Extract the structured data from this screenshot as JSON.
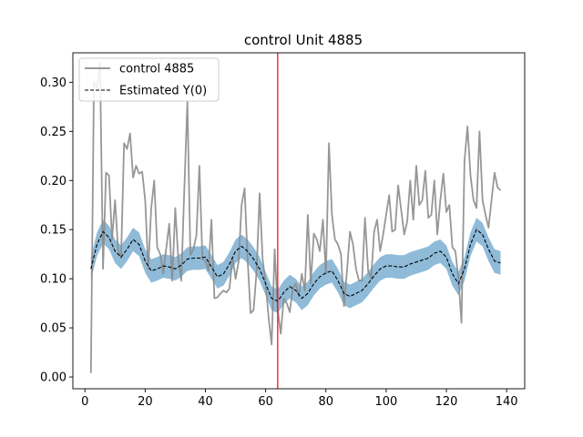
{
  "chart_data": {
    "type": "line",
    "title": "control Unit 4885",
    "xlabel": "",
    "ylabel": "",
    "xlim": [
      -4,
      146
    ],
    "ylim": [
      -0.012,
      0.33
    ],
    "xticks": [
      0,
      20,
      40,
      60,
      80,
      100,
      120,
      140
    ],
    "yticks": [
      0.0,
      0.05,
      0.1,
      0.15,
      0.2,
      0.25,
      0.3
    ],
    "ytick_labels": [
      "0.00",
      "0.05",
      "0.10",
      "0.15",
      "0.20",
      "0.25",
      "0.30"
    ],
    "grid": false,
    "legend": {
      "position": "top-left",
      "entries": [
        "control 4885",
        "Estimated Y(0)"
      ]
    },
    "colors": {
      "observed": "#8c8c8c",
      "estimate": "#000000",
      "band": "#1f77b4",
      "vline": "#ff0000"
    },
    "vline_x": 64,
    "series": [
      {
        "name": "control 4885",
        "style": "solid",
        "x": [
          2,
          3,
          4,
          5,
          6,
          7,
          8,
          9,
          10,
          11,
          12,
          13,
          14,
          15,
          16,
          17,
          18,
          19,
          20,
          21,
          22,
          23,
          24,
          25,
          26,
          27,
          28,
          29,
          30,
          31,
          32,
          33,
          34,
          35,
          36,
          37,
          38,
          39,
          40,
          41,
          42,
          43,
          44,
          45,
          46,
          47,
          48,
          49,
          50,
          51,
          52,
          53,
          54,
          55,
          56,
          57,
          58,
          59,
          60,
          61,
          62,
          63,
          64,
          65,
          66,
          67,
          68,
          69,
          70,
          71,
          72,
          73,
          74,
          75,
          76,
          77,
          78,
          79,
          80,
          81,
          82,
          83,
          84,
          85,
          86,
          87,
          88,
          89,
          90,
          91,
          92,
          93,
          94,
          95,
          96,
          97,
          98,
          99,
          100,
          101,
          102,
          103,
          104,
          105,
          106,
          107,
          108,
          109,
          110,
          111,
          112,
          113,
          114,
          115,
          116,
          117,
          118,
          119,
          120,
          121,
          122,
          123,
          124,
          125,
          126,
          127,
          128,
          129,
          130,
          131,
          132,
          133,
          134,
          135,
          136,
          137,
          138
        ],
        "values": [
          0.004,
          0.3,
          0.295,
          0.32,
          0.11,
          0.208,
          0.205,
          0.14,
          0.18,
          0.13,
          0.121,
          0.238,
          0.232,
          0.248,
          0.203,
          0.215,
          0.207,
          0.209,
          0.18,
          0.11,
          0.172,
          0.2,
          0.132,
          0.125,
          0.105,
          0.131,
          0.156,
          0.098,
          0.172,
          0.12,
          0.098,
          0.19,
          0.28,
          0.124,
          0.13,
          0.144,
          0.215,
          0.12,
          0.118,
          0.108,
          0.16,
          0.08,
          0.081,
          0.085,
          0.088,
          0.086,
          0.09,
          0.122,
          0.1,
          0.117,
          0.175,
          0.192,
          0.12,
          0.065,
          0.068,
          0.108,
          0.187,
          0.12,
          0.095,
          0.06,
          0.033,
          0.13,
          0.068,
          0.044,
          0.08,
          0.075,
          0.066,
          0.09,
          0.095,
          0.082,
          0.105,
          0.088,
          0.165,
          0.095,
          0.146,
          0.14,
          0.128,
          0.16,
          0.105,
          0.238,
          0.165,
          0.14,
          0.135,
          0.125,
          0.072,
          0.108,
          0.148,
          0.135,
          0.11,
          0.098,
          0.098,
          0.162,
          0.108,
          0.1,
          0.148,
          0.16,
          0.128,
          0.145,
          0.165,
          0.185,
          0.148,
          0.15,
          0.195,
          0.17,
          0.145,
          0.158,
          0.2,
          0.16,
          0.215,
          0.175,
          0.18,
          0.21,
          0.162,
          0.165,
          0.2,
          0.145,
          0.18,
          0.207,
          0.168,
          0.175,
          0.132,
          0.128,
          0.1,
          0.055,
          0.22,
          0.255,
          0.205,
          0.18,
          0.172,
          0.25,
          0.18,
          0.165,
          0.152,
          0.18,
          0.208,
          0.193,
          0.19
        ]
      },
      {
        "name": "Estimated Y(0)",
        "style": "dashed",
        "x": [
          2,
          4,
          6,
          8,
          10,
          12,
          14,
          16,
          18,
          20,
          22,
          24,
          26,
          28,
          30,
          32,
          34,
          36,
          38,
          40,
          42,
          44,
          46,
          48,
          50,
          52,
          54,
          56,
          58,
          60,
          62,
          64,
          66,
          68,
          70,
          72,
          74,
          76,
          78,
          80,
          82,
          84,
          86,
          88,
          90,
          92,
          94,
          96,
          98,
          100,
          102,
          104,
          106,
          108,
          110,
          112,
          114,
          116,
          118,
          120,
          122,
          124,
          126,
          128,
          130,
          132,
          134,
          136,
          138
        ],
        "values": [
          0.11,
          0.135,
          0.148,
          0.142,
          0.128,
          0.122,
          0.13,
          0.14,
          0.135,
          0.118,
          0.108,
          0.11,
          0.113,
          0.112,
          0.11,
          0.114,
          0.12,
          0.121,
          0.121,
          0.122,
          0.112,
          0.102,
          0.105,
          0.115,
          0.128,
          0.133,
          0.128,
          0.12,
          0.11,
          0.095,
          0.08,
          0.077,
          0.086,
          0.092,
          0.088,
          0.08,
          0.085,
          0.095,
          0.102,
          0.106,
          0.108,
          0.098,
          0.085,
          0.082,
          0.085,
          0.088,
          0.095,
          0.103,
          0.11,
          0.113,
          0.113,
          0.112,
          0.112,
          0.115,
          0.117,
          0.119,
          0.121,
          0.126,
          0.128,
          0.122,
          0.105,
          0.095,
          0.11,
          0.135,
          0.15,
          0.145,
          0.13,
          0.118,
          0.116
        ]
      }
    ],
    "band": {
      "x": [
        2,
        4,
        6,
        8,
        10,
        12,
        14,
        16,
        18,
        20,
        22,
        24,
        26,
        28,
        30,
        32,
        34,
        36,
        38,
        40,
        42,
        44,
        46,
        48,
        50,
        52,
        54,
        56,
        58,
        60,
        62,
        64,
        66,
        68,
        70,
        72,
        74,
        76,
        78,
        80,
        82,
        84,
        86,
        88,
        90,
        92,
        94,
        96,
        98,
        100,
        102,
        104,
        106,
        108,
        110,
        112,
        114,
        116,
        118,
        120,
        122,
        124,
        126,
        128,
        130,
        132,
        134,
        136,
        138
      ],
      "center": [
        0.11,
        0.135,
        0.148,
        0.142,
        0.128,
        0.122,
        0.13,
        0.14,
        0.135,
        0.118,
        0.108,
        0.11,
        0.113,
        0.112,
        0.11,
        0.114,
        0.12,
        0.121,
        0.121,
        0.122,
        0.112,
        0.102,
        0.105,
        0.115,
        0.128,
        0.133,
        0.128,
        0.12,
        0.11,
        0.095,
        0.08,
        0.077,
        0.086,
        0.092,
        0.088,
        0.08,
        0.085,
        0.095,
        0.102,
        0.106,
        0.108,
        0.098,
        0.085,
        0.082,
        0.085,
        0.088,
        0.095,
        0.103,
        0.11,
        0.113,
        0.113,
        0.112,
        0.112,
        0.115,
        0.117,
        0.119,
        0.121,
        0.126,
        0.128,
        0.122,
        0.105,
        0.095,
        0.11,
        0.135,
        0.15,
        0.145,
        0.13,
        0.118,
        0.116
      ],
      "halfwidth": 0.012
    }
  }
}
